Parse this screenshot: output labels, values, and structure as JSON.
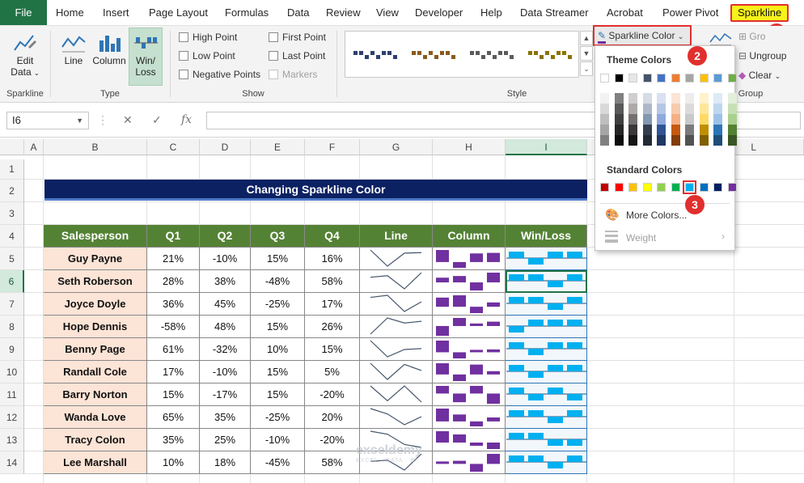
{
  "tabs": [
    {
      "label": "File"
    },
    {
      "label": "Home"
    },
    {
      "label": "Insert"
    },
    {
      "label": "Page Layout"
    },
    {
      "label": "Formulas"
    },
    {
      "label": "Data"
    },
    {
      "label": "Review"
    },
    {
      "label": "View"
    },
    {
      "label": "Developer"
    },
    {
      "label": "Help"
    },
    {
      "label": "Data Streamer"
    },
    {
      "label": "Acrobat"
    },
    {
      "label": "Power Pivot"
    },
    {
      "label": "Sparkline"
    }
  ],
  "ribbon": {
    "sparkline_group": {
      "edit_label": "Edit",
      "edit_label2": "Data",
      "label": "Sparkline"
    },
    "type_group": {
      "line": "Line",
      "column": "Column",
      "winloss": "Win/",
      "winloss2": "Loss",
      "label": "Type"
    },
    "show_group": {
      "high_point": "High Point",
      "low_point": "Low Point",
      "negative_points": "Negative Points",
      "first_point": "First Point",
      "last_point": "Last Point",
      "markers": "Markers",
      "label": "Show"
    },
    "style_group": {
      "label": "Style"
    },
    "color_button": "Sparkline Color",
    "group_group": {
      "group": "Gro",
      "ungroup": "Ungroup",
      "clear": "Clear",
      "label": "Group"
    }
  },
  "formula_bar": {
    "name_box": "I6",
    "fx": "fx"
  },
  "columns": [
    "A",
    "B",
    "C",
    "D",
    "E",
    "F",
    "G",
    "H",
    "I",
    "L"
  ],
  "rows": [
    "1",
    "2",
    "3",
    "4",
    "5",
    "6",
    "7",
    "8",
    "9",
    "10",
    "11",
    "12",
    "13",
    "14"
  ],
  "sheet": {
    "title": "Changing Sparkline Color",
    "headers": [
      "Salesperson",
      "Q1",
      "Q2",
      "Q3",
      "Q4",
      "Line",
      "Column",
      "Win/Loss"
    ],
    "data": [
      {
        "name": "Guy Payne",
        "q": [
          "21%",
          "-10%",
          "15%",
          "16%"
        ],
        "v": [
          21,
          -10,
          15,
          16
        ]
      },
      {
        "name": "Seth Roberson",
        "q": [
          "28%",
          "38%",
          "-48%",
          "58%"
        ],
        "v": [
          28,
          38,
          -48,
          58
        ]
      },
      {
        "name": "Joyce Doyle",
        "q": [
          "36%",
          "45%",
          "-25%",
          "17%"
        ],
        "v": [
          36,
          45,
          -25,
          17
        ]
      },
      {
        "name": "Hope Dennis",
        "q": [
          "-58%",
          "48%",
          "15%",
          "26%"
        ],
        "v": [
          -58,
          48,
          15,
          26
        ]
      },
      {
        "name": "Benny Page",
        "q": [
          "61%",
          "-32%",
          "10%",
          "15%"
        ],
        "v": [
          61,
          -32,
          10,
          15
        ]
      },
      {
        "name": "Randall Cole",
        "q": [
          "17%",
          "-10%",
          "15%",
          "5%"
        ],
        "v": [
          17,
          -10,
          15,
          5
        ]
      },
      {
        "name": "Barry Norton",
        "q": [
          "15%",
          "-17%",
          "15%",
          "-20%"
        ],
        "v": [
          15,
          -17,
          15,
          -20
        ]
      },
      {
        "name": "Wanda Love",
        "q": [
          "65%",
          "35%",
          "-25%",
          "20%"
        ],
        "v": [
          65,
          35,
          -25,
          20
        ]
      },
      {
        "name": "Tracy Colon",
        "q": [
          "35%",
          "25%",
          "-10%",
          "-20%"
        ],
        "v": [
          35,
          25,
          -10,
          -20
        ]
      },
      {
        "name": "Lee Marshall",
        "q": [
          "10%",
          "18%",
          "-45%",
          "58%"
        ],
        "v": [
          10,
          18,
          -45,
          58
        ]
      }
    ]
  },
  "menu": {
    "theme_colors": "Theme Colors",
    "standard_colors": "Standard Colors",
    "more_colors": "More Colors...",
    "weight": "Weight",
    "theme_top": [
      "#ffffff",
      "#000000",
      "#e7e6e6",
      "#44546a",
      "#4472c4",
      "#ed7d31",
      "#a5a5a5",
      "#ffc000",
      "#5b9bd5",
      "#70ad47"
    ],
    "theme_shades": [
      [
        "#f2f2f2",
        "#d9d9d9",
        "#bfbfbf",
        "#a6a6a6",
        "#808080"
      ],
      [
        "#808080",
        "#595959",
        "#404040",
        "#262626",
        "#0d0d0d"
      ],
      [
        "#d0cece",
        "#aeaaaa",
        "#757171",
        "#3a3838",
        "#171616"
      ],
      [
        "#d6dce4",
        "#adb9ca",
        "#8497b0",
        "#333f4f",
        "#222a35"
      ],
      [
        "#d9e1f2",
        "#b4c6e7",
        "#8ea9db",
        "#2f5597",
        "#1f3864"
      ],
      [
        "#fce4d6",
        "#f8cbad",
        "#f4b084",
        "#c65911",
        "#833c0c"
      ],
      [
        "#ededed",
        "#dbdbdb",
        "#c9c9c9",
        "#7b7b7b",
        "#525252"
      ],
      [
        "#fff2cc",
        "#ffe699",
        "#ffd966",
        "#bf8f00",
        "#806000"
      ],
      [
        "#ddebf7",
        "#bdd7ee",
        "#9bc2e6",
        "#2e75b6",
        "#1f4e79"
      ],
      [
        "#e2efda",
        "#c6e0b4",
        "#a9d08e",
        "#548235",
        "#375623"
      ]
    ],
    "standard": [
      "#c00000",
      "#ff0000",
      "#ffc000",
      "#ffff00",
      "#92d050",
      "#00b050",
      "#00b0f0",
      "#0070c0",
      "#002060",
      "#7030a0"
    ]
  },
  "callouts": [
    "1",
    "2",
    "3"
  ],
  "watermark": {
    "line1": "exceldemy",
    "line2": "EXCEL · DATA · BI"
  },
  "colors": {
    "accent_green": "#217346",
    "header_green": "#548235",
    "title_navy": "#0c2162",
    "name_fill": "#fce4d6",
    "line_spark": "#44546a",
    "column_spark": "#7030a0",
    "winloss_spark": "#00b0f0",
    "callout_red": "#e0302e"
  }
}
